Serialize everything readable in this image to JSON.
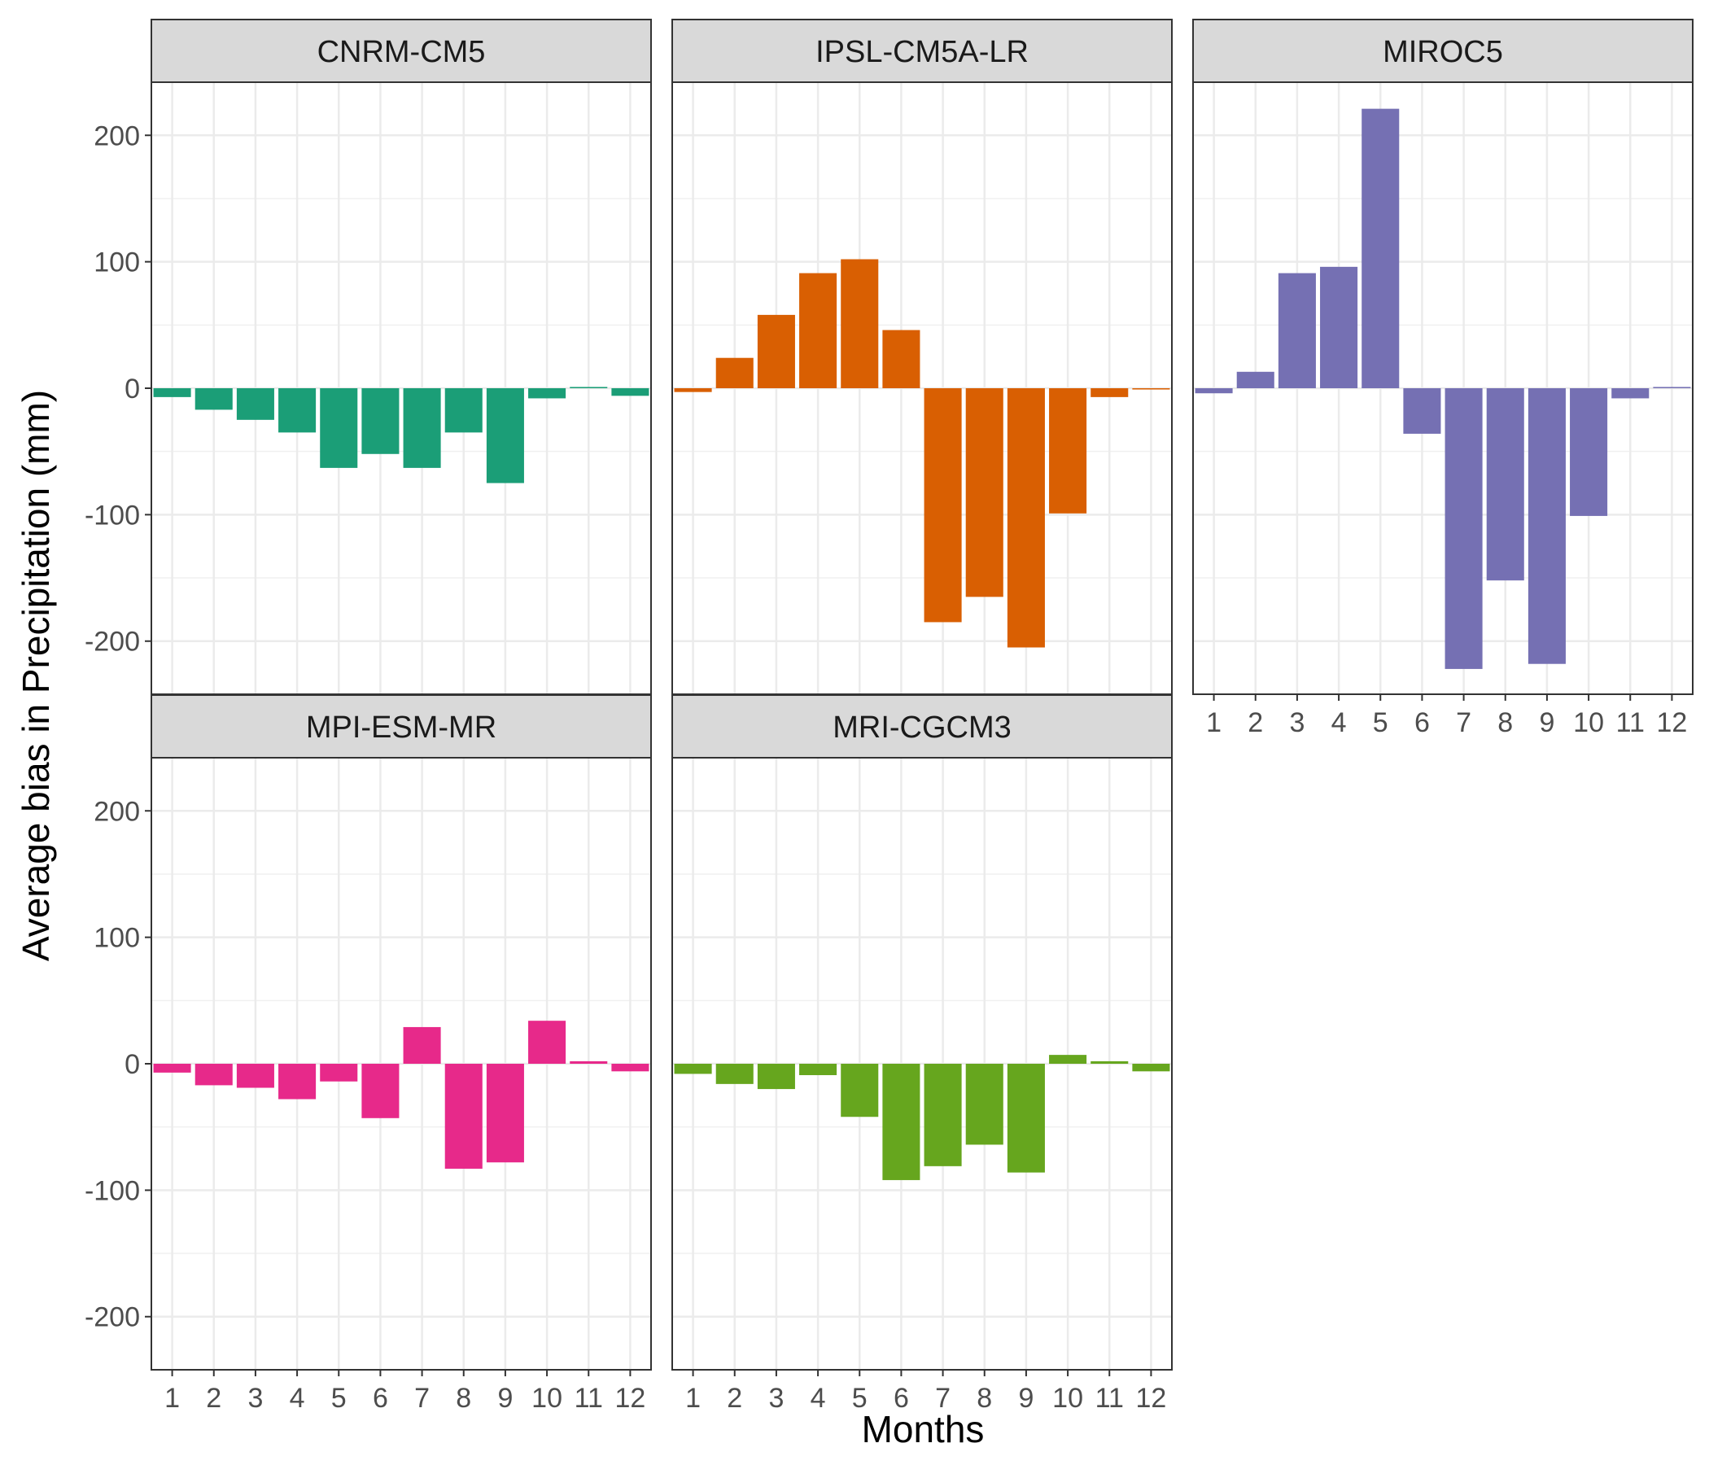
{
  "chart_data": {
    "type": "bar",
    "layout": "facet_wrap",
    "xlabel": "Months",
    "ylabel": "Average bias in Precipitation (mm)",
    "categories": [
      "1",
      "2",
      "3",
      "4",
      "5",
      "6",
      "7",
      "8",
      "9",
      "10",
      "11",
      "12"
    ],
    "ylim": [
      -242,
      242
    ],
    "yticks": [
      200,
      100,
      0,
      -100,
      -200
    ],
    "ytick_labels": [
      "200",
      "100",
      "0",
      "-100",
      "-200"
    ],
    "grid": true,
    "panels": [
      {
        "name": "CNRM-CM5",
        "color": "#1B9E77",
        "values": [
          -7,
          -17,
          -25,
          -35,
          -63,
          -52,
          -63,
          -35,
          -75,
          -8,
          1,
          -6
        ]
      },
      {
        "name": "IPSL-CM5A-LR",
        "color": "#D95F02",
        "values": [
          -3,
          24,
          58,
          91,
          102,
          46,
          -185,
          -165,
          -205,
          -99,
          -7,
          -1
        ]
      },
      {
        "name": "MIROC5",
        "color": "#7570B3",
        "values": [
          -4,
          13,
          91,
          96,
          221,
          -36,
          -222,
          -152,
          -218,
          -101,
          -8,
          1
        ]
      },
      {
        "name": "MPI-ESM-MR",
        "color": "#E7298A",
        "values": [
          -7,
          -17,
          -19,
          -28,
          -14,
          -43,
          29,
          -83,
          -78,
          34,
          2,
          -6
        ]
      },
      {
        "name": "MRI-CGCM3",
        "color": "#66A61E",
        "values": [
          -8,
          -16,
          -20,
          -9,
          -42,
          -92,
          -81,
          -64,
          -86,
          7,
          2,
          -6
        ]
      }
    ]
  }
}
